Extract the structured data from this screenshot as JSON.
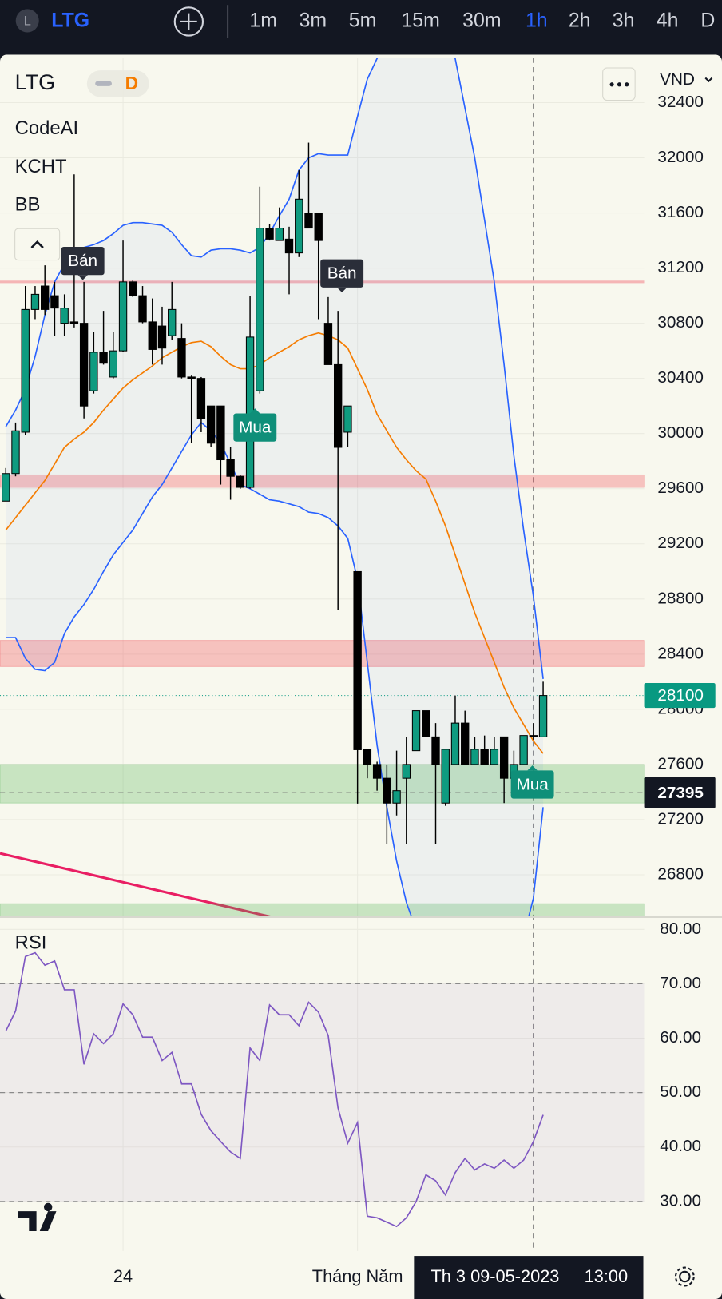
{
  "toolbar": {
    "avatar": "L",
    "symbol": "LTG",
    "timeframes": [
      "1m",
      "3m",
      "5m",
      "15m",
      "30m",
      "1h",
      "2h",
      "3h",
      "4h",
      "D"
    ],
    "active": "1h"
  },
  "header": {
    "symbol": "LTG",
    "badge": "D",
    "indicators": [
      "CodeAI",
      "KCHT",
      "BB"
    ],
    "currency": "VND"
  },
  "chart_data": [
    {
      "type": "candlestick",
      "categories": [
        null,
        null,
        null,
        null,
        null,
        null,
        null,
        null,
        null,
        null,
        null,
        null,
        "24",
        null,
        null,
        null,
        null,
        null,
        null,
        null,
        null,
        null,
        null,
        null,
        null,
        null,
        null,
        null,
        null,
        null,
        null,
        null,
        null,
        null,
        null,
        null,
        "Tháng Năm",
        null,
        null,
        null,
        null,
        null,
        null,
        null,
        null,
        null,
        null,
        null,
        null,
        null,
        null,
        null,
        null,
        null,
        null,
        null
      ],
      "open": [
        29510,
        29710,
        30010,
        30900,
        31070,
        31000,
        30800,
        30810,
        30800,
        30310,
        30590,
        30410,
        30600,
        31100,
        31000,
        30810,
        30780,
        30710,
        30690,
        30410,
        30400,
        30200,
        30200,
        29810,
        29690,
        29610,
        30310,
        31490,
        31400,
        31410,
        31310,
        31600,
        31600,
        30800,
        30500,
        30010,
        28999,
        27707,
        27600,
        27500,
        27320,
        27500,
        27700,
        27990,
        27800,
        27320,
        27600,
        27900,
        27600,
        27710,
        27600,
        27800,
        27500,
        27600,
        27810,
        27800
      ],
      "high": [
        29750,
        30080,
        31070,
        31070,
        31220,
        31100,
        31010,
        31880,
        31100,
        30740,
        30890,
        30740,
        31400,
        31110,
        31070,
        30980,
        30920,
        31100,
        30800,
        30420,
        30410,
        30200,
        30200,
        29900,
        29700,
        31000,
        31790,
        31520,
        31640,
        31500,
        31910,
        32110,
        31600,
        30990,
        30890,
        30200,
        28999,
        27707,
        27620,
        27600,
        27700,
        27800,
        27990,
        27990,
        27900,
        27710,
        28100,
        27990,
        27800,
        27810,
        27800,
        27800,
        27700,
        27810,
        27900,
        28200
      ],
      "low": [
        29510,
        29690,
        29990,
        30830,
        30860,
        30710,
        30710,
        30770,
        30110,
        30290,
        30500,
        30400,
        30590,
        30990,
        30800,
        30500,
        30500,
        30680,
        30400,
        29930,
        30010,
        29900,
        29630,
        29520,
        29600,
        29600,
        30290,
        31400,
        31400,
        31010,
        31280,
        31490,
        30830,
        30500,
        28720,
        29900,
        27316,
        27500,
        27410,
        27020,
        27230,
        27020,
        27700,
        27800,
        27020,
        27300,
        27600,
        27600,
        27600,
        27600,
        27600,
        27320,
        27400,
        27600,
        27780,
        27800
      ],
      "close": [
        29710,
        30020,
        30900,
        31010,
        30900,
        30910,
        30910,
        30800,
        30200,
        30590,
        30510,
        30600,
        31100,
        31000,
        30810,
        30610,
        30620,
        30900,
        30410,
        30400,
        30110,
        29930,
        29810,
        29690,
        29610,
        30700,
        31490,
        31410,
        31490,
        31310,
        31700,
        31490,
        31400,
        30500,
        29900,
        30200,
        27707,
        27600,
        27500,
        27320,
        27410,
        27600,
        27990,
        27800,
        27600,
        27710,
        27900,
        27600,
        27710,
        27600,
        27710,
        27500,
        27600,
        27810,
        27800,
        28100
      ],
      "up_color": "#0f9b80",
      "down_color": "#000000",
      "overlays": [
        {
          "color": "#2962ff",
          "values": [
            30050,
            30170,
            30320,
            30560,
            30860,
            31100,
            31230,
            31310,
            31350,
            31370,
            31400,
            31450,
            31510,
            31530,
            31530,
            31520,
            31510,
            31460,
            31370,
            31290,
            31280,
            31330,
            31340,
            31340,
            31330,
            31310,
            31350,
            31450,
            31580,
            31700,
            31910,
            32000,
            32030,
            32020,
            32020,
            32020,
            32300,
            32570,
            32720,
            32850,
            32950,
            33000,
            33000,
            32950,
            32850,
            32780,
            32720,
            32360,
            32000,
            31550,
            31100,
            30500,
            29840,
            29300,
            28820,
            28220
          ]
        },
        {
          "color": "#f57c00",
          "values": [
            29300,
            29390,
            29480,
            29570,
            29660,
            29780,
            29900,
            29960,
            30010,
            30080,
            30170,
            30250,
            30330,
            30390,
            30440,
            30490,
            30550,
            30590,
            30630,
            30660,
            30670,
            30630,
            30560,
            30500,
            30470,
            30470,
            30500,
            30550,
            30590,
            30630,
            30680,
            30710,
            30730,
            30710,
            30680,
            30620,
            30470,
            30320,
            30140,
            30020,
            29900,
            29810,
            29730,
            29670,
            29510,
            29330,
            29120,
            28910,
            28700,
            28520,
            28340,
            28160,
            28010,
            27890,
            27770,
            27680
          ]
        },
        {
          "color": "#2962ff",
          "values": [
            28520,
            28520,
            28370,
            28290,
            28280,
            28340,
            28550,
            28670,
            28760,
            28870,
            29000,
            29120,
            29210,
            29300,
            29420,
            29540,
            29630,
            29750,
            29870,
            29990,
            30080,
            30020,
            29930,
            29780,
            29630,
            29600,
            29560,
            29520,
            29510,
            29490,
            29470,
            29430,
            29420,
            29390,
            29330,
            29240,
            28940,
            28340,
            27740,
            27290,
            26900,
            26600,
            26400,
            26300,
            26200,
            26100,
            26050,
            26000,
            26000,
            26000,
            26050,
            26100,
            26200,
            26350,
            26630,
            27290
          ]
        }
      ],
      "zones": [
        {
          "from": 29610,
          "to": 29700,
          "color": "rgba(242,54,69,0.28)"
        },
        {
          "from": 28310,
          "to": 28500,
          "color": "rgba(242,54,69,0.28)"
        },
        {
          "from": 27320,
          "to": 27600,
          "color": "rgba(76,175,80,0.28)"
        },
        {
          "from": 26400,
          "to": 26590,
          "color": "rgba(76,175,80,0.28)"
        }
      ],
      "levels": [
        {
          "value": 31100,
          "color": "#f5b5b5"
        }
      ],
      "annotations": [
        {
          "text": "Bán",
          "color": "#2a2e39"
        },
        {
          "text": "Bán",
          "color": "#2a2e39"
        },
        {
          "text": "Mua",
          "color": "#0f8f79"
        },
        {
          "text": "Mua",
          "color": "#0f8f79"
        }
      ],
      "last_price": {
        "value": 28100,
        "color": "#089981"
      },
      "crosshair": {
        "price": 27395,
        "date": "Th 3 09-05-2023",
        "time": "13:00"
      },
      "ylim": [
        26493,
        32724
      ],
      "yticks": [
        26800,
        27200,
        27600,
        28000,
        28400,
        28800,
        29200,
        29600,
        30000,
        30400,
        30800,
        31200,
        31600,
        32000,
        32400
      ],
      "grid": true
    },
    {
      "type": "line",
      "title": "RSI",
      "color": "#7e57c2",
      "values": [
        61.3,
        65,
        75,
        75.7,
        73.4,
        74.2,
        68.9,
        68.9,
        55.2,
        60.8,
        59,
        60.8,
        66.3,
        64.3,
        60.2,
        60.2,
        55.9,
        57.4,
        51.6,
        51.6,
        46,
        43,
        41,
        39.1,
        37.9,
        58.2,
        55.9,
        66.1,
        64.3,
        64.3,
        62.3,
        66.6,
        64.8,
        60.5,
        47.2,
        40.7,
        44.5,
        27.3,
        27,
        26.2,
        25.4,
        27,
        30,
        34.9,
        33.8,
        31.2,
        35.3,
        37.9,
        35.8,
        36.9,
        36.1,
        37.6,
        36.1,
        37.6,
        41,
        45.9
      ],
      "levels": [
        30,
        50,
        70
      ],
      "ylim": [
        20.9,
        81.8
      ],
      "yticks": [
        {
          "value": 30,
          "label": "30.00"
        },
        {
          "value": 40,
          "label": "40.00"
        },
        {
          "value": 50,
          "label": "50.00"
        },
        {
          "value": 60,
          "label": "60.00"
        },
        {
          "value": 70,
          "label": "70.00"
        },
        {
          "value": 80,
          "label": "80.00"
        }
      ]
    }
  ]
}
